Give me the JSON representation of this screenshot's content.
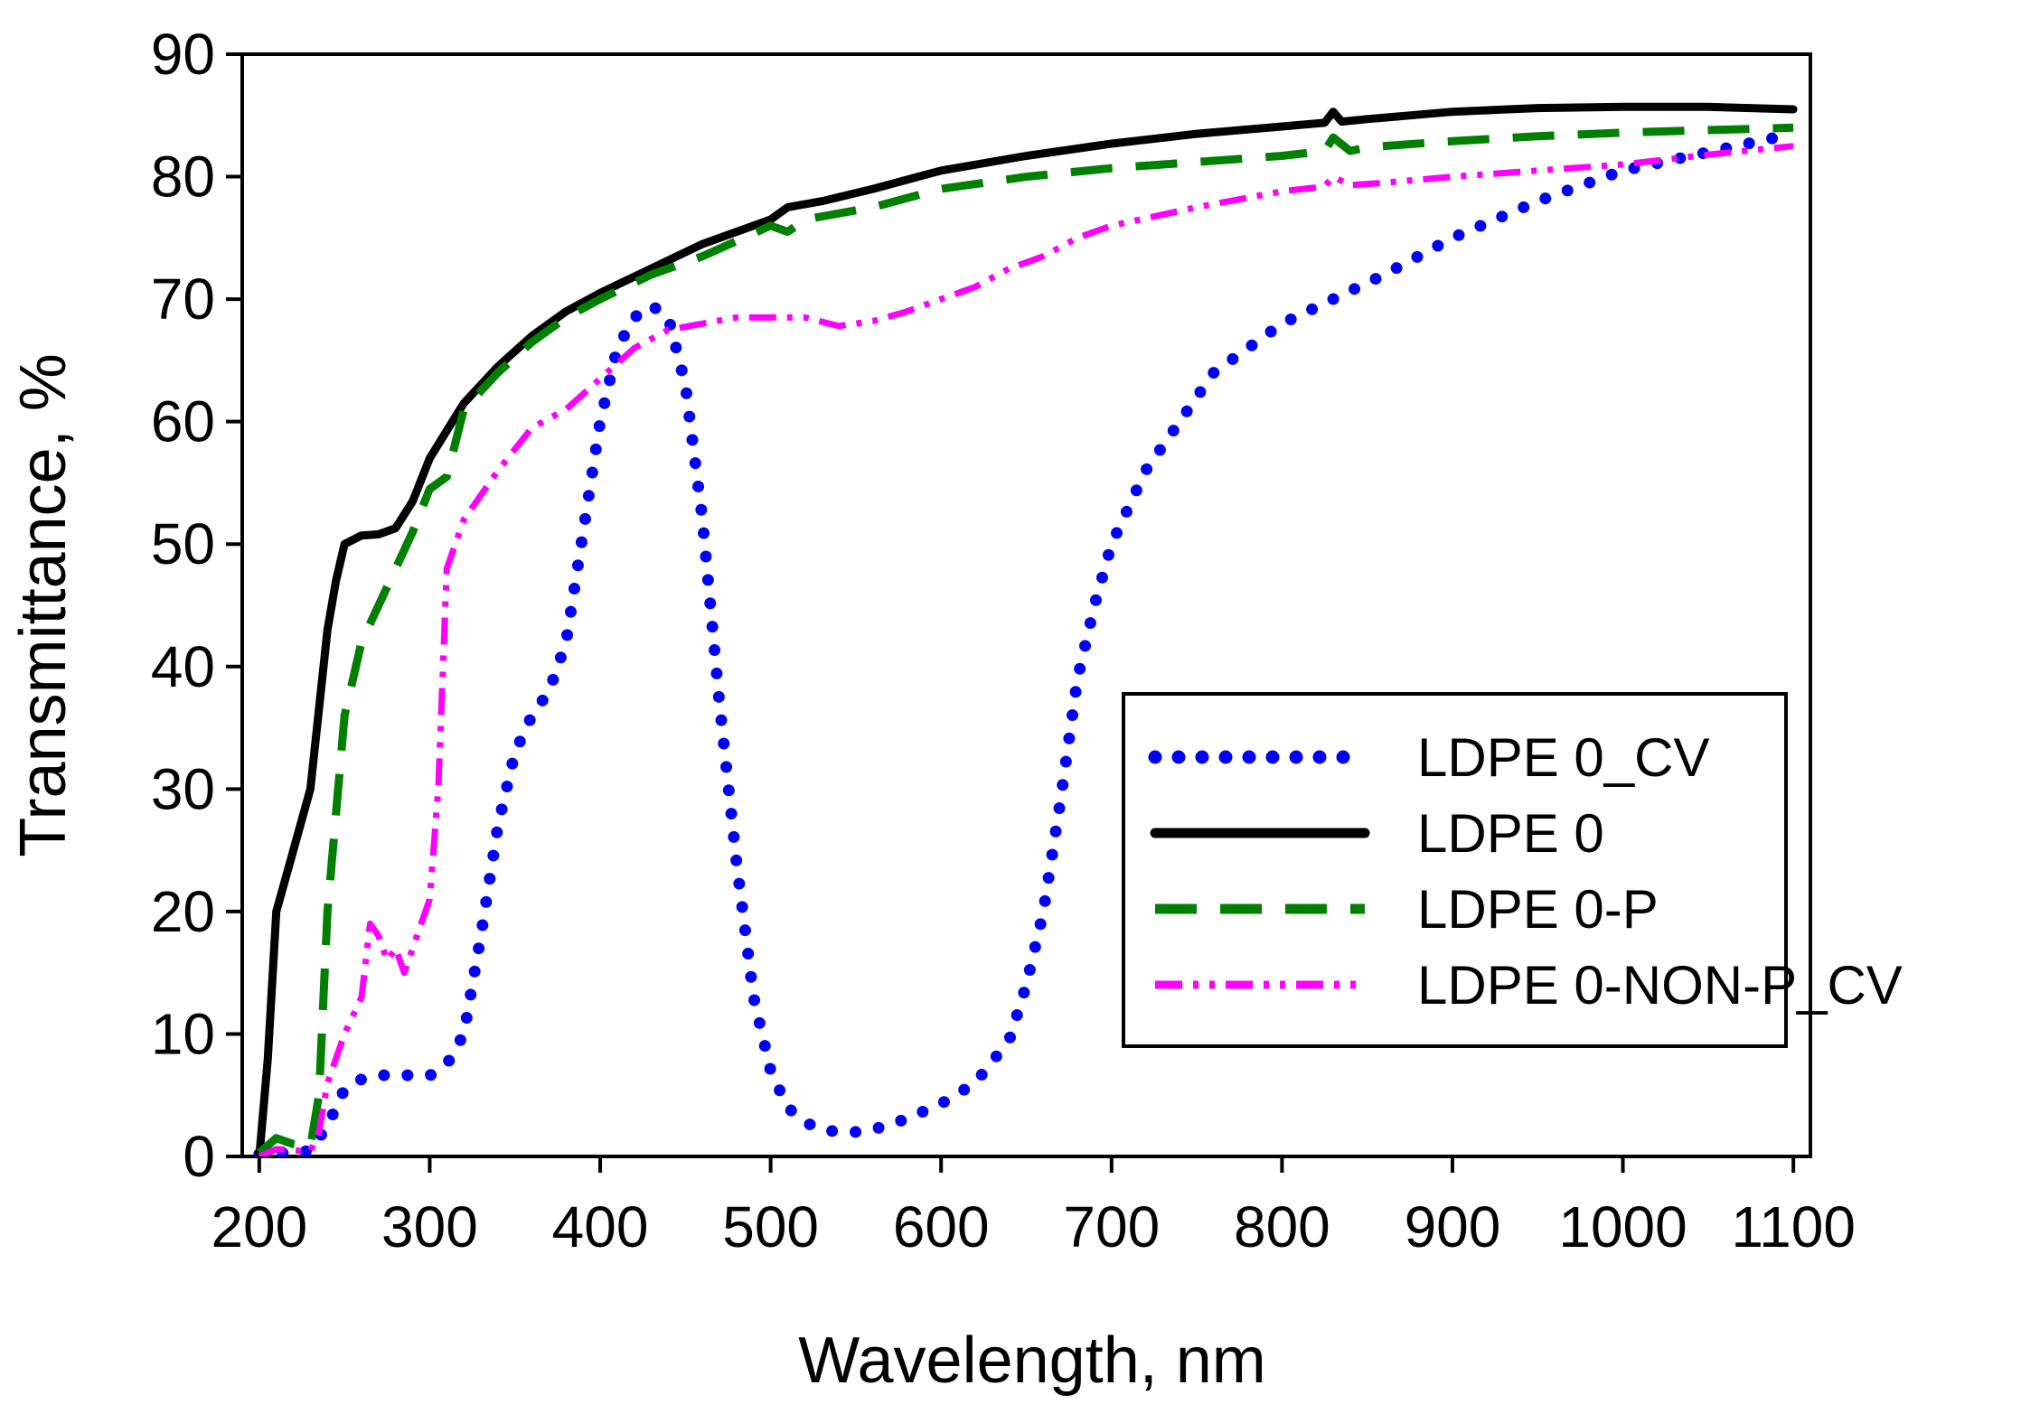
{
  "chart_data": {
    "type": "line",
    "title": "",
    "xlabel": "Wavelength, nm",
    "ylabel": "Transmittance, %",
    "xlim": [
      200,
      1100
    ],
    "ylim": [
      0,
      90
    ],
    "xticks": [
      200,
      300,
      400,
      500,
      600,
      700,
      800,
      900,
      1000,
      1100
    ],
    "yticks": [
      0,
      10,
      20,
      30,
      40,
      50,
      60,
      70,
      80,
      90
    ],
    "grid": false,
    "legend_position": "center-right",
    "series": [
      {
        "name": "LDPE 0_CV",
        "color": "#0000ff",
        "style": "dotted",
        "x": [
          200,
          210,
          220,
          230,
          240,
          250,
          260,
          270,
          280,
          290,
          300,
          310,
          320,
          330,
          340,
          350,
          360,
          370,
          380,
          390,
          400,
          410,
          420,
          430,
          440,
          450,
          460,
          470,
          480,
          490,
          500,
          510,
          520,
          530,
          540,
          550,
          560,
          570,
          580,
          600,
          620,
          640,
          650,
          660,
          670,
          680,
          690,
          700,
          720,
          740,
          760,
          780,
          800,
          830,
          860,
          900,
          950,
          1000,
          1050,
          1100
        ],
        "y": [
          0.2,
          0.3,
          0.2,
          0.5,
          2.5,
          5.5,
          6.3,
          6.6,
          6.7,
          6.6,
          6.6,
          7.5,
          10,
          18,
          27,
          33,
          36,
          38,
          42,
          51,
          60,
          66,
          68.5,
          69.5,
          68.5,
          63,
          52,
          37,
          24,
          13,
          7,
          4,
          2.8,
          2.2,
          2.0,
          2.0,
          2.2,
          2.6,
          3.1,
          4.3,
          6.0,
          9.5,
          14,
          20,
          29,
          39,
          45,
          50,
          56,
          60,
          64,
          66,
          68,
          70,
          72,
          75,
          78,
          80.5,
          82,
          83.5
        ]
      },
      {
        "name": "LDPE 0",
        "color": "#000000",
        "style": "solid",
        "x": [
          200,
          205,
          210,
          220,
          230,
          240,
          245,
          250,
          260,
          270,
          280,
          290,
          300,
          320,
          340,
          360,
          380,
          400,
          430,
          460,
          500,
          510,
          530,
          560,
          600,
          650,
          700,
          750,
          800,
          825,
          830,
          835,
          850,
          900,
          950,
          1000,
          1050,
          1100
        ],
        "y": [
          0,
          8,
          20,
          25,
          30,
          43,
          47,
          50,
          50.7,
          50.8,
          51.3,
          53.5,
          57,
          61.5,
          64.5,
          67,
          69,
          70.5,
          72.5,
          74.5,
          76.5,
          77.5,
          78,
          79,
          80.5,
          81.7,
          82.7,
          83.5,
          84.1,
          84.4,
          85.3,
          84.5,
          84.7,
          85.3,
          85.6,
          85.7,
          85.7,
          85.5
        ]
      },
      {
        "name": "LDPE 0-P",
        "color": "#008000",
        "style": "dashed",
        "x": [
          200,
          210,
          220,
          230,
          235,
          240,
          250,
          260,
          270,
          280,
          290,
          300,
          310,
          320,
          340,
          360,
          380,
          400,
          430,
          460,
          500,
          510,
          520,
          560,
          600,
          650,
          700,
          750,
          800,
          825,
          830,
          840,
          850,
          900,
          950,
          1000,
          1050,
          1100
        ],
        "y": [
          0.3,
          1.5,
          1.0,
          0.8,
          5,
          20,
          36,
          42,
          45,
          48,
          51,
          54.5,
          55.5,
          61,
          64,
          66.5,
          68.5,
          70,
          72,
          73.5,
          76,
          75.5,
          76.5,
          77.5,
          79,
          80,
          80.7,
          81.2,
          81.7,
          82.1,
          83.2,
          82.1,
          82.4,
          82.9,
          83.3,
          83.6,
          83.8,
          84
        ]
      },
      {
        "name": "LDPE 0-NON-P_CV",
        "color": "#ff00ff",
        "style": "dash-dot-dot",
        "x": [
          200,
          210,
          220,
          230,
          235,
          240,
          250,
          260,
          265,
          270,
          275,
          280,
          285,
          290,
          295,
          300,
          305,
          310,
          320,
          340,
          360,
          380,
          400,
          420,
          440,
          460,
          480,
          500,
          520,
          540,
          560,
          580,
          600,
          620,
          640,
          660,
          680,
          700,
          750,
          800,
          825,
          830,
          840,
          860,
          900,
          950,
          1000,
          1050,
          1100
        ],
        "y": [
          0,
          0.6,
          0.5,
          0.4,
          2,
          6,
          10,
          13,
          19,
          18,
          16,
          17,
          15,
          17,
          19,
          21,
          30,
          48,
          52,
          56,
          59.5,
          61,
          63.5,
          66,
          67.5,
          68,
          68.5,
          68.5,
          68.5,
          67.8,
          68.2,
          69,
          70,
          71,
          72.5,
          73.5,
          75,
          76,
          77.5,
          78.8,
          79.2,
          80,
          79.3,
          79.5,
          80,
          80.5,
          81,
          81.8,
          82.5
        ]
      }
    ]
  }
}
